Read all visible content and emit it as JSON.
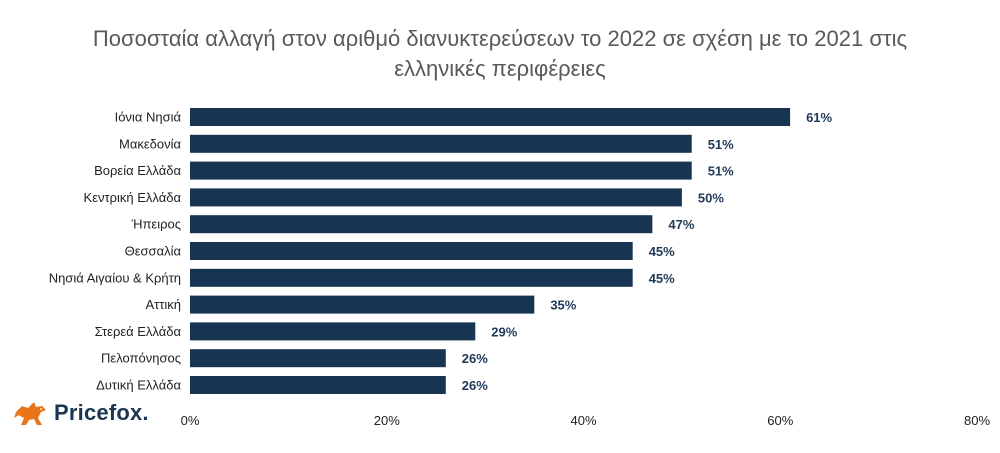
{
  "chart_data": {
    "type": "bar",
    "orientation": "horizontal",
    "title": "Ποσοσταία αλλαγή στον αριθμό διανυκτερεύσεων το 2022 σε σχέση με το 2021 στις ελληνικές περιφέρειες",
    "title_lines": [
      "Ποσοσταία αλλαγή στον αριθμό διανυκτερεύσεων το 2022 σε σχέση με το 2021 στις",
      "ελληνικές περιφέρειες"
    ],
    "categories": [
      "Ιόνια Νησιά",
      "Μακεδονία",
      "Βορεία Ελλάδα",
      "Κεντρική Ελλάδα",
      "Ήπειρος",
      "Θεσσαλία",
      "Νησιά Αιγαίου & Κρήτη",
      "Αττική",
      "Στερεά Ελλάδα",
      "Πελοπόνησος",
      "Δυτική Ελλάδα"
    ],
    "values": [
      61,
      51,
      51,
      50,
      47,
      45,
      45,
      35,
      29,
      26,
      26
    ],
    "value_labels": [
      "61%",
      "51%",
      "51%",
      "50%",
      "47%",
      "45%",
      "45%",
      "35%",
      "29%",
      "26%",
      "26%"
    ],
    "xlabel": "",
    "ylabel": "",
    "xlim": [
      0,
      80
    ],
    "x_ticks": [
      0,
      20,
      40,
      60,
      80
    ],
    "x_tick_labels": [
      "0%",
      "20%",
      "40%",
      "60%",
      "80%"
    ],
    "grid": false,
    "legend": "none",
    "bar_color": "#173452",
    "value_label_color": "#1f3a57"
  },
  "branding": {
    "logo_text": "Pricefox.",
    "logo_icon": "fox-icon",
    "logo_color": "#1c3553",
    "icon_color": "#e8751a"
  }
}
